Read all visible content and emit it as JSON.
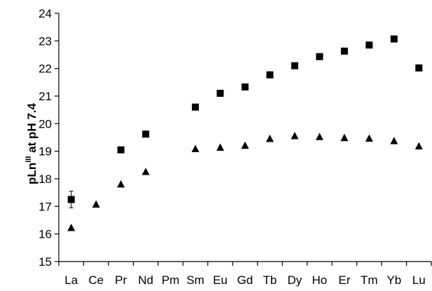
{
  "chart_data": {
    "type": "scatter",
    "categories": [
      "La",
      "Ce",
      "Pr",
      "Nd",
      "Pm",
      "Sm",
      "Eu",
      "Gd",
      "Tb",
      "Dy",
      "Ho",
      "Er",
      "Tm",
      "Yb",
      "Lu"
    ],
    "series": [
      {
        "marker": "square",
        "values": [
          17.25,
          null,
          19.05,
          19.62,
          null,
          20.6,
          21.1,
          21.33,
          21.77,
          22.1,
          22.43,
          22.63,
          22.85,
          23.07,
          22.02
        ],
        "error": [
          0.3,
          null,
          null,
          null,
          null,
          null,
          null,
          null,
          null,
          null,
          null,
          null,
          null,
          null,
          null
        ]
      },
      {
        "marker": "triangle",
        "values": [
          16.22,
          17.07,
          17.8,
          18.25,
          null,
          19.08,
          19.13,
          19.2,
          19.45,
          19.55,
          19.52,
          19.48,
          19.46,
          19.37,
          19.18
        ]
      }
    ],
    "ylabel": {
      "prefix": "pLn",
      "sup": "III",
      "suffix": " at pH 7.4"
    },
    "ylim": [
      15,
      24
    ],
    "yticks": [
      "15",
      "16",
      "17",
      "18",
      "19",
      "20",
      "21",
      "22",
      "23",
      "24"
    ],
    "grid": false,
    "legend": "none",
    "colors": {
      "marker": "#000000",
      "axis": "#000000"
    }
  }
}
